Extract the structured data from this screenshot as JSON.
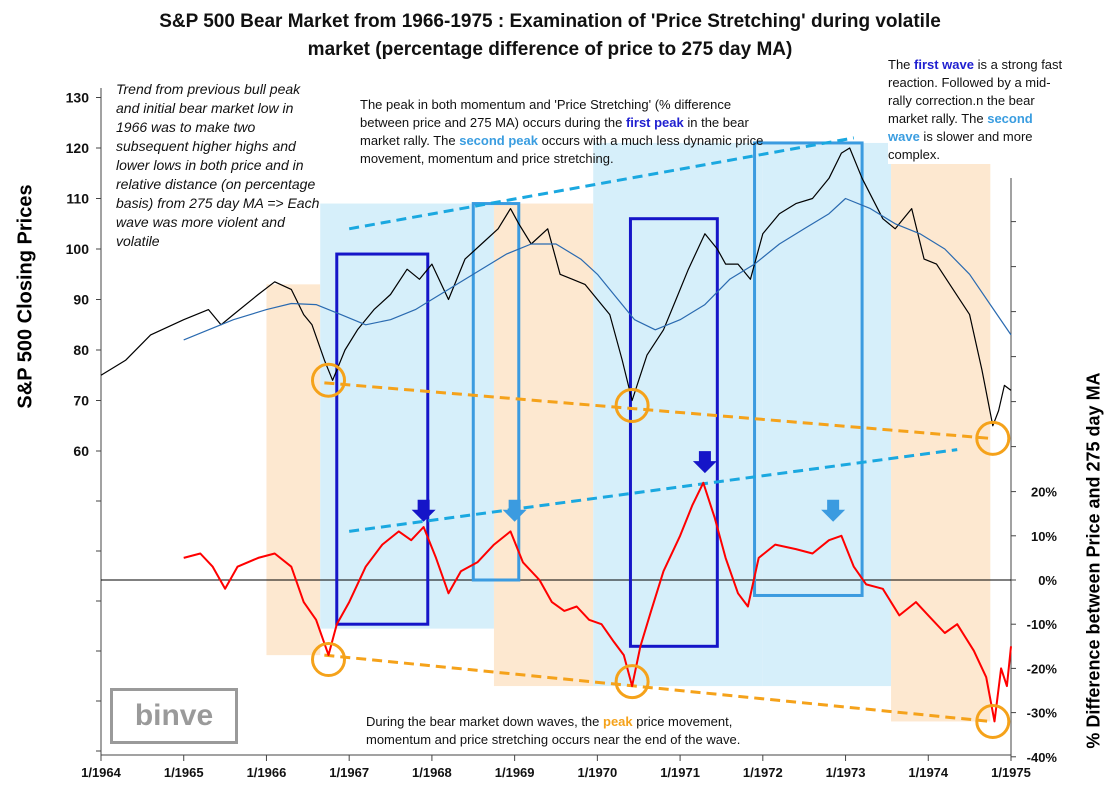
{
  "chart_data": {
    "type": "line",
    "title": "S&P 500 Bear Market from 1966-1975 : Examination of 'Price Stretching' during volatile market (percentage difference of price to 275 day MA)",
    "title_line1": "S&P 500 Bear Market from 1966-1975 : Examination of 'Price Stretching' during volatile",
    "title_line2": "market (percentage difference of price to 275 day MA)",
    "ylabel_left": "S&P 500 Closing Prices",
    "ylabel_right": "% Difference between Price and 275 day MA",
    "x_ticks": [
      "1/1964",
      "1/1965",
      "1/1966",
      "1/1967",
      "1/1968",
      "1/1969",
      "1/1970",
      "1/1971",
      "1/1972",
      "1/1973",
      "1/1974",
      "1/1975"
    ],
    "x_range": [
      1964.0,
      1975.0
    ],
    "left_axis": {
      "ticks": [
        60,
        70,
        80,
        90,
        100,
        110,
        120,
        130
      ]
    },
    "right_axis": {
      "ticks": [
        "20%",
        "10%",
        "0%",
        "-10%",
        "-20%",
        "-30%",
        "-40%"
      ],
      "values": [
        20,
        10,
        0,
        -10,
        -20,
        -30,
        -40
      ]
    },
    "series": [
      {
        "name": "S&P 500 Close",
        "color": "#000000",
        "points": [
          [
            1964.0,
            75
          ],
          [
            1964.3,
            78
          ],
          [
            1964.6,
            83
          ],
          [
            1965.0,
            86
          ],
          [
            1965.3,
            88
          ],
          [
            1965.45,
            85
          ],
          [
            1965.6,
            87
          ],
          [
            1965.9,
            91
          ],
          [
            1966.1,
            93.5
          ],
          [
            1966.3,
            92
          ],
          [
            1966.45,
            87
          ],
          [
            1966.55,
            85
          ],
          [
            1966.7,
            78
          ],
          [
            1966.8,
            74
          ],
          [
            1966.95,
            80
          ],
          [
            1967.1,
            84
          ],
          [
            1967.3,
            88
          ],
          [
            1967.5,
            91
          ],
          [
            1967.7,
            96
          ],
          [
            1967.85,
            94
          ],
          [
            1968.0,
            97
          ],
          [
            1968.2,
            90
          ],
          [
            1968.4,
            98
          ],
          [
            1968.6,
            101
          ],
          [
            1968.8,
            104
          ],
          [
            1968.95,
            108
          ],
          [
            1969.05,
            105
          ],
          [
            1969.2,
            101
          ],
          [
            1969.4,
            104
          ],
          [
            1969.55,
            95
          ],
          [
            1969.7,
            94
          ],
          [
            1969.85,
            93
          ],
          [
            1970.0,
            90
          ],
          [
            1970.15,
            87
          ],
          [
            1970.3,
            78
          ],
          [
            1970.42,
            70
          ],
          [
            1970.5,
            74
          ],
          [
            1970.6,
            79
          ],
          [
            1970.8,
            84
          ],
          [
            1970.95,
            90
          ],
          [
            1971.1,
            96
          ],
          [
            1971.3,
            103
          ],
          [
            1971.45,
            100
          ],
          [
            1971.55,
            97
          ],
          [
            1971.7,
            97
          ],
          [
            1971.85,
            94
          ],
          [
            1972.0,
            103
          ],
          [
            1972.2,
            107
          ],
          [
            1972.4,
            109
          ],
          [
            1972.6,
            110
          ],
          [
            1972.8,
            114
          ],
          [
            1972.95,
            119
          ],
          [
            1973.05,
            120
          ],
          [
            1973.2,
            114
          ],
          [
            1973.45,
            106
          ],
          [
            1973.6,
            104
          ],
          [
            1973.8,
            108
          ],
          [
            1973.95,
            98
          ],
          [
            1974.1,
            97
          ],
          [
            1974.3,
            92
          ],
          [
            1974.5,
            87
          ],
          [
            1974.65,
            76
          ],
          [
            1974.78,
            65
          ],
          [
            1974.85,
            68
          ],
          [
            1974.92,
            73
          ],
          [
            1975.0,
            72
          ]
        ]
      },
      {
        "name": "275 day MA",
        "color": "#2a6ab0",
        "points": [
          [
            1965.0,
            82
          ],
          [
            1965.3,
            84
          ],
          [
            1965.6,
            86
          ],
          [
            1966.0,
            88
          ],
          [
            1966.3,
            89.2
          ],
          [
            1966.6,
            89
          ],
          [
            1966.9,
            87
          ],
          [
            1967.2,
            85
          ],
          [
            1967.5,
            86
          ],
          [
            1967.8,
            88
          ],
          [
            1968.0,
            90
          ],
          [
            1968.3,
            93
          ],
          [
            1968.6,
            96
          ],
          [
            1968.9,
            99
          ],
          [
            1969.2,
            101
          ],
          [
            1969.5,
            101
          ],
          [
            1969.8,
            98
          ],
          [
            1970.0,
            95
          ],
          [
            1970.2,
            91
          ],
          [
            1970.45,
            86
          ],
          [
            1970.7,
            84
          ],
          [
            1971.0,
            86
          ],
          [
            1971.3,
            89
          ],
          [
            1971.6,
            94
          ],
          [
            1971.9,
            97
          ],
          [
            1972.2,
            101
          ],
          [
            1972.5,
            104
          ],
          [
            1972.8,
            107
          ],
          [
            1973.0,
            110
          ],
          [
            1973.3,
            108
          ],
          [
            1973.6,
            105
          ],
          [
            1973.9,
            103
          ],
          [
            1974.2,
            100
          ],
          [
            1974.5,
            95
          ],
          [
            1974.75,
            89
          ],
          [
            1975.0,
            83
          ]
        ]
      },
      {
        "name": "% Difference to 275 day MA",
        "color": "#ff0000",
        "points": [
          [
            1965.0,
            5
          ],
          [
            1965.2,
            6
          ],
          [
            1965.35,
            3
          ],
          [
            1965.5,
            -2
          ],
          [
            1965.65,
            3
          ],
          [
            1965.9,
            5
          ],
          [
            1966.1,
            6
          ],
          [
            1966.3,
            3
          ],
          [
            1966.45,
            -5
          ],
          [
            1966.6,
            -9
          ],
          [
            1966.75,
            -17
          ],
          [
            1966.85,
            -10
          ],
          [
            1967.0,
            -5
          ],
          [
            1967.2,
            3
          ],
          [
            1967.4,
            8
          ],
          [
            1967.6,
            11
          ],
          [
            1967.75,
            9
          ],
          [
            1967.9,
            12
          ],
          [
            1968.05,
            5
          ],
          [
            1968.2,
            -3
          ],
          [
            1968.35,
            2
          ],
          [
            1968.55,
            4
          ],
          [
            1968.75,
            8
          ],
          [
            1968.95,
            11
          ],
          [
            1969.1,
            4
          ],
          [
            1969.3,
            0
          ],
          [
            1969.45,
            -5
          ],
          [
            1969.6,
            -7
          ],
          [
            1969.75,
            -6
          ],
          [
            1969.9,
            -9
          ],
          [
            1970.05,
            -10
          ],
          [
            1970.2,
            -14
          ],
          [
            1970.32,
            -17
          ],
          [
            1970.42,
            -24
          ],
          [
            1970.52,
            -15
          ],
          [
            1970.65,
            -7
          ],
          [
            1970.8,
            2
          ],
          [
            1971.0,
            10
          ],
          [
            1971.15,
            17
          ],
          [
            1971.28,
            22
          ],
          [
            1971.42,
            14
          ],
          [
            1971.55,
            5
          ],
          [
            1971.7,
            -3
          ],
          [
            1971.82,
            -6
          ],
          [
            1971.95,
            5
          ],
          [
            1972.15,
            8
          ],
          [
            1972.4,
            7
          ],
          [
            1972.6,
            6
          ],
          [
            1972.8,
            9
          ],
          [
            1972.95,
            10
          ],
          [
            1973.1,
            3
          ],
          [
            1973.25,
            -1
          ],
          [
            1973.45,
            -2
          ],
          [
            1973.65,
            -8
          ],
          [
            1973.85,
            -5
          ],
          [
            1974.0,
            -8
          ],
          [
            1974.2,
            -12
          ],
          [
            1974.35,
            -10
          ],
          [
            1974.55,
            -16
          ],
          [
            1974.7,
            -22
          ],
          [
            1974.8,
            -32
          ],
          [
            1974.88,
            -20
          ],
          [
            1974.95,
            -24
          ],
          [
            1975.0,
            -15
          ]
        ]
      }
    ],
    "annotations": {
      "note_trend": "Trend from previous bull peak and initial bear market low in 1966 was to make two subsequent higher highs and lower lows in both price and in relative distance (on percentage basis) from 275 day MA => Each wave was more violent and volatile",
      "note_peak_a": "The peak in both momentum  and 'Price Stretching' (% difference between price and 275 MA) occurs during the ",
      "note_peak_first": "first peak",
      "note_peak_b": " in the bear market rally.  The ",
      "note_peak_second": "second peak",
      "note_peak_c": " occurs with a much less dynamic price movement, momentum  and price stretching.",
      "note_wave_a": "The ",
      "note_wave_first": "first wave",
      "note_wave_b": " is a strong fast reaction. Followed by a mid-rally correction.n the bear market rally.  The ",
      "note_wave_second": "second wave",
      "note_wave_c": " is slower and more complex.",
      "note_down_a": "During the bear market down waves, the ",
      "note_down_peak": "peak",
      "note_down_b": " price movement, momentum  and price stretching occurs near the end of the wave."
    },
    "logo": "binve"
  }
}
